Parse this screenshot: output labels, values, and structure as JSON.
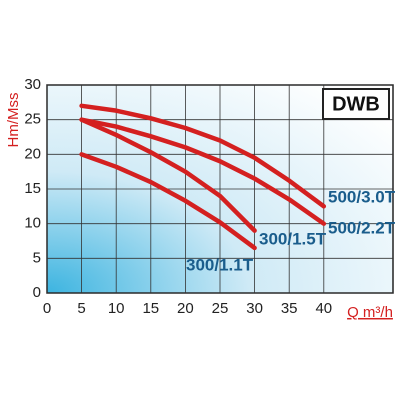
{
  "chart_data": {
    "type": "line",
    "title": "DWB",
    "x_label": "Q m³/h",
    "y_label": "Hm/Mss",
    "x": [
      5,
      10,
      15,
      20,
      25,
      30,
      35,
      40
    ],
    "series": [
      {
        "name": "500/3.0T",
        "color": "#d42020",
        "values": [
          27,
          26.3,
          25.2,
          23.8,
          22,
          19.5,
          16.2,
          12.5
        ]
      },
      {
        "name": "500/2.2T",
        "color": "#d42020",
        "values": [
          25,
          24,
          22.6,
          21,
          19,
          16.5,
          13.5,
          10
        ]
      },
      {
        "name": "300/1.5T",
        "color": "#d42020",
        "values": [
          25,
          22.8,
          20.3,
          17.5,
          14,
          9,
          null,
          null
        ]
      },
      {
        "name": "300/1.1T",
        "color": "#d42020",
        "values": [
          20,
          18.2,
          16,
          13.3,
          10.2,
          6.5,
          null,
          null
        ]
      }
    ],
    "xlim": [
      0,
      50
    ],
    "xticks": [
      0,
      5,
      10,
      15,
      20,
      25,
      30,
      35,
      40
    ],
    "ylim": [
      0,
      30
    ],
    "yticks": [
      0,
      5,
      10,
      15,
      20,
      25,
      30
    ],
    "grid": true
  }
}
